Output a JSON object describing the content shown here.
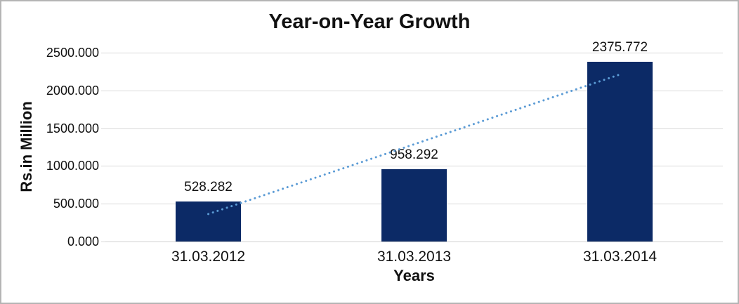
{
  "window": {
    "background": "#ffffff",
    "border_color": "#b4b4b4"
  },
  "chart_data": {
    "type": "bar",
    "title": "Year-on-Year Growth",
    "xlabel": "Years",
    "ylabel": "Rs.in Million",
    "categories": [
      "31.03.2012",
      "31.03.2013",
      "31.03.2014"
    ],
    "values": [
      528.282,
      958.292,
      2375.772
    ],
    "data_labels": [
      "528.282",
      "958.292",
      "2375.772"
    ],
    "ylim": [
      0,
      2500
    ],
    "ytick_step": 500,
    "ytick_labels": [
      "0.000",
      "500.000",
      "1000.000",
      "1500.000",
      "2000.000",
      "2500.000"
    ],
    "grid": true,
    "legend": "none",
    "bar_color": "#0c2a66",
    "grid_color": "#d9d9d9",
    "axis_color": "#d0d0d0",
    "text_color": "#111111",
    "trendline": {
      "type": "linear",
      "style": "dotted",
      "color": "#5b9bd5"
    }
  }
}
